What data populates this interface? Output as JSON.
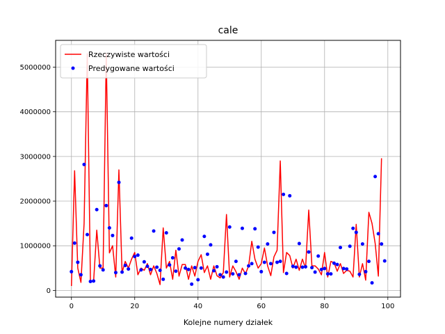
{
  "chart_data": {
    "type": "line",
    "title": "cale",
    "xlabel": "Kolejne numery działek",
    "ylabel": "",
    "xlim": [
      -5,
      104
    ],
    "ylim": [
      -150000,
      5600000
    ],
    "x_ticks": [
      0,
      20,
      40,
      60,
      80,
      100
    ],
    "x_tick_labels": [
      "0",
      "20",
      "40",
      "60",
      "80",
      "100"
    ],
    "y_ticks": [
      0,
      1000000,
      2000000,
      3000000,
      4000000,
      5000000
    ],
    "y_tick_labels": [
      "0",
      "1000000",
      "2000000",
      "3000000",
      "4000000",
      "5000000"
    ],
    "grid": true,
    "legend_position": "top-left",
    "series": [
      {
        "name": "Rzeczywiste wartości",
        "style": "line",
        "color": "#ff0000",
        "x": [
          0,
          1,
          2,
          3,
          4,
          5,
          6,
          7,
          8,
          9,
          10,
          11,
          12,
          13,
          14,
          15,
          16,
          17,
          18,
          19,
          20,
          21,
          22,
          23,
          24,
          25,
          26,
          27,
          28,
          29,
          30,
          31,
          32,
          33,
          34,
          35,
          36,
          37,
          38,
          39,
          40,
          41,
          42,
          43,
          44,
          45,
          46,
          47,
          48,
          49,
          50,
          51,
          52,
          53,
          54,
          55,
          56,
          57,
          58,
          59,
          60,
          61,
          62,
          63,
          64,
          65,
          66,
          67,
          68,
          69,
          70,
          71,
          72,
          73,
          74,
          75,
          76,
          77,
          78,
          79,
          80,
          81,
          82,
          83,
          84,
          85,
          86,
          87,
          88,
          89,
          90,
          91,
          92,
          93,
          94,
          95,
          96,
          97,
          98,
          99
        ],
        "values": [
          100000,
          2680000,
          500000,
          180000,
          1500000,
          5300000,
          210000,
          200000,
          1350000,
          500000,
          500000,
          5300000,
          840000,
          1000000,
          300000,
          2700000,
          400000,
          650000,
          500000,
          700000,
          850000,
          350000,
          500000,
          450000,
          600000,
          350000,
          550000,
          380000,
          130000,
          1400000,
          500000,
          650000,
          250000,
          900000,
          320000,
          580000,
          580000,
          250000,
          550000,
          320000,
          650000,
          800000,
          400000,
          550000,
          250000,
          550000,
          330000,
          280000,
          400000,
          1700000,
          300000,
          550000,
          420000,
          250000,
          500000,
          370000,
          550000,
          1100000,
          700000,
          500000,
          600000,
          950000,
          550000,
          330000,
          750000,
          900000,
          2900000,
          400000,
          850000,
          780000,
          500000,
          700000,
          450000,
          700000,
          500000,
          1800000,
          550000,
          550000,
          480000,
          350000,
          850000,
          300000,
          650000,
          620000,
          430000,
          600000,
          380000,
          450000,
          430000,
          300000,
          1480000,
          300000,
          600000,
          230000,
          1750000,
          1500000,
          1050000,
          320000,
          2960000,
          null
        ]
      },
      {
        "name": "Predygowane wartości",
        "style": "points",
        "color": "#0000ff",
        "x": [
          0,
          1,
          2,
          3,
          4,
          5,
          6,
          7,
          8,
          9,
          10,
          11,
          12,
          13,
          14,
          15,
          16,
          17,
          18,
          19,
          20,
          21,
          22,
          23,
          24,
          25,
          26,
          27,
          28,
          29,
          30,
          31,
          32,
          33,
          34,
          35,
          36,
          37,
          38,
          39,
          40,
          41,
          42,
          43,
          44,
          45,
          46,
          47,
          48,
          49,
          50,
          51,
          52,
          53,
          54,
          55,
          56,
          57,
          58,
          59,
          60,
          61,
          62,
          63,
          64,
          65,
          66,
          67,
          68,
          69,
          70,
          71,
          72,
          73,
          74,
          75,
          76,
          77,
          78,
          79,
          80,
          81,
          82,
          83,
          84,
          85,
          86,
          87,
          88,
          89,
          90,
          91,
          92,
          93,
          94,
          95,
          96,
          97,
          98,
          99
        ],
        "values": [
          420000,
          1060000,
          630000,
          350000,
          2820000,
          1250000,
          200000,
          210000,
          1810000,
          550000,
          460000,
          1900000,
          1400000,
          1230000,
          400000,
          2420000,
          410000,
          560000,
          480000,
          1170000,
          760000,
          790000,
          460000,
          640000,
          540000,
          470000,
          1330000,
          520000,
          450000,
          250000,
          1290000,
          570000,
          730000,
          430000,
          930000,
          1130000,
          500000,
          470000,
          140000,
          510000,
          240000,
          500000,
          1210000,
          810000,
          1020000,
          440000,
          530000,
          350000,
          300000,
          410000,
          1420000,
          370000,
          650000,
          350000,
          1390000,
          380000,
          550000,
          600000,
          1380000,
          970000,
          420000,
          630000,
          1040000,
          600000,
          1300000,
          630000,
          650000,
          2150000,
          380000,
          2120000,
          540000,
          520000,
          1050000,
          520000,
          530000,
          860000,
          510000,
          410000,
          770000,
          470000,
          490000,
          370000,
          370000,
          610000,
          580000,
          960000,
          490000,
          480000,
          990000,
          1390000,
          1300000,
          360000,
          1040000,
          420000,
          650000,
          170000,
          2550000,
          1270000,
          1040000,
          660000
        ]
      }
    ]
  }
}
